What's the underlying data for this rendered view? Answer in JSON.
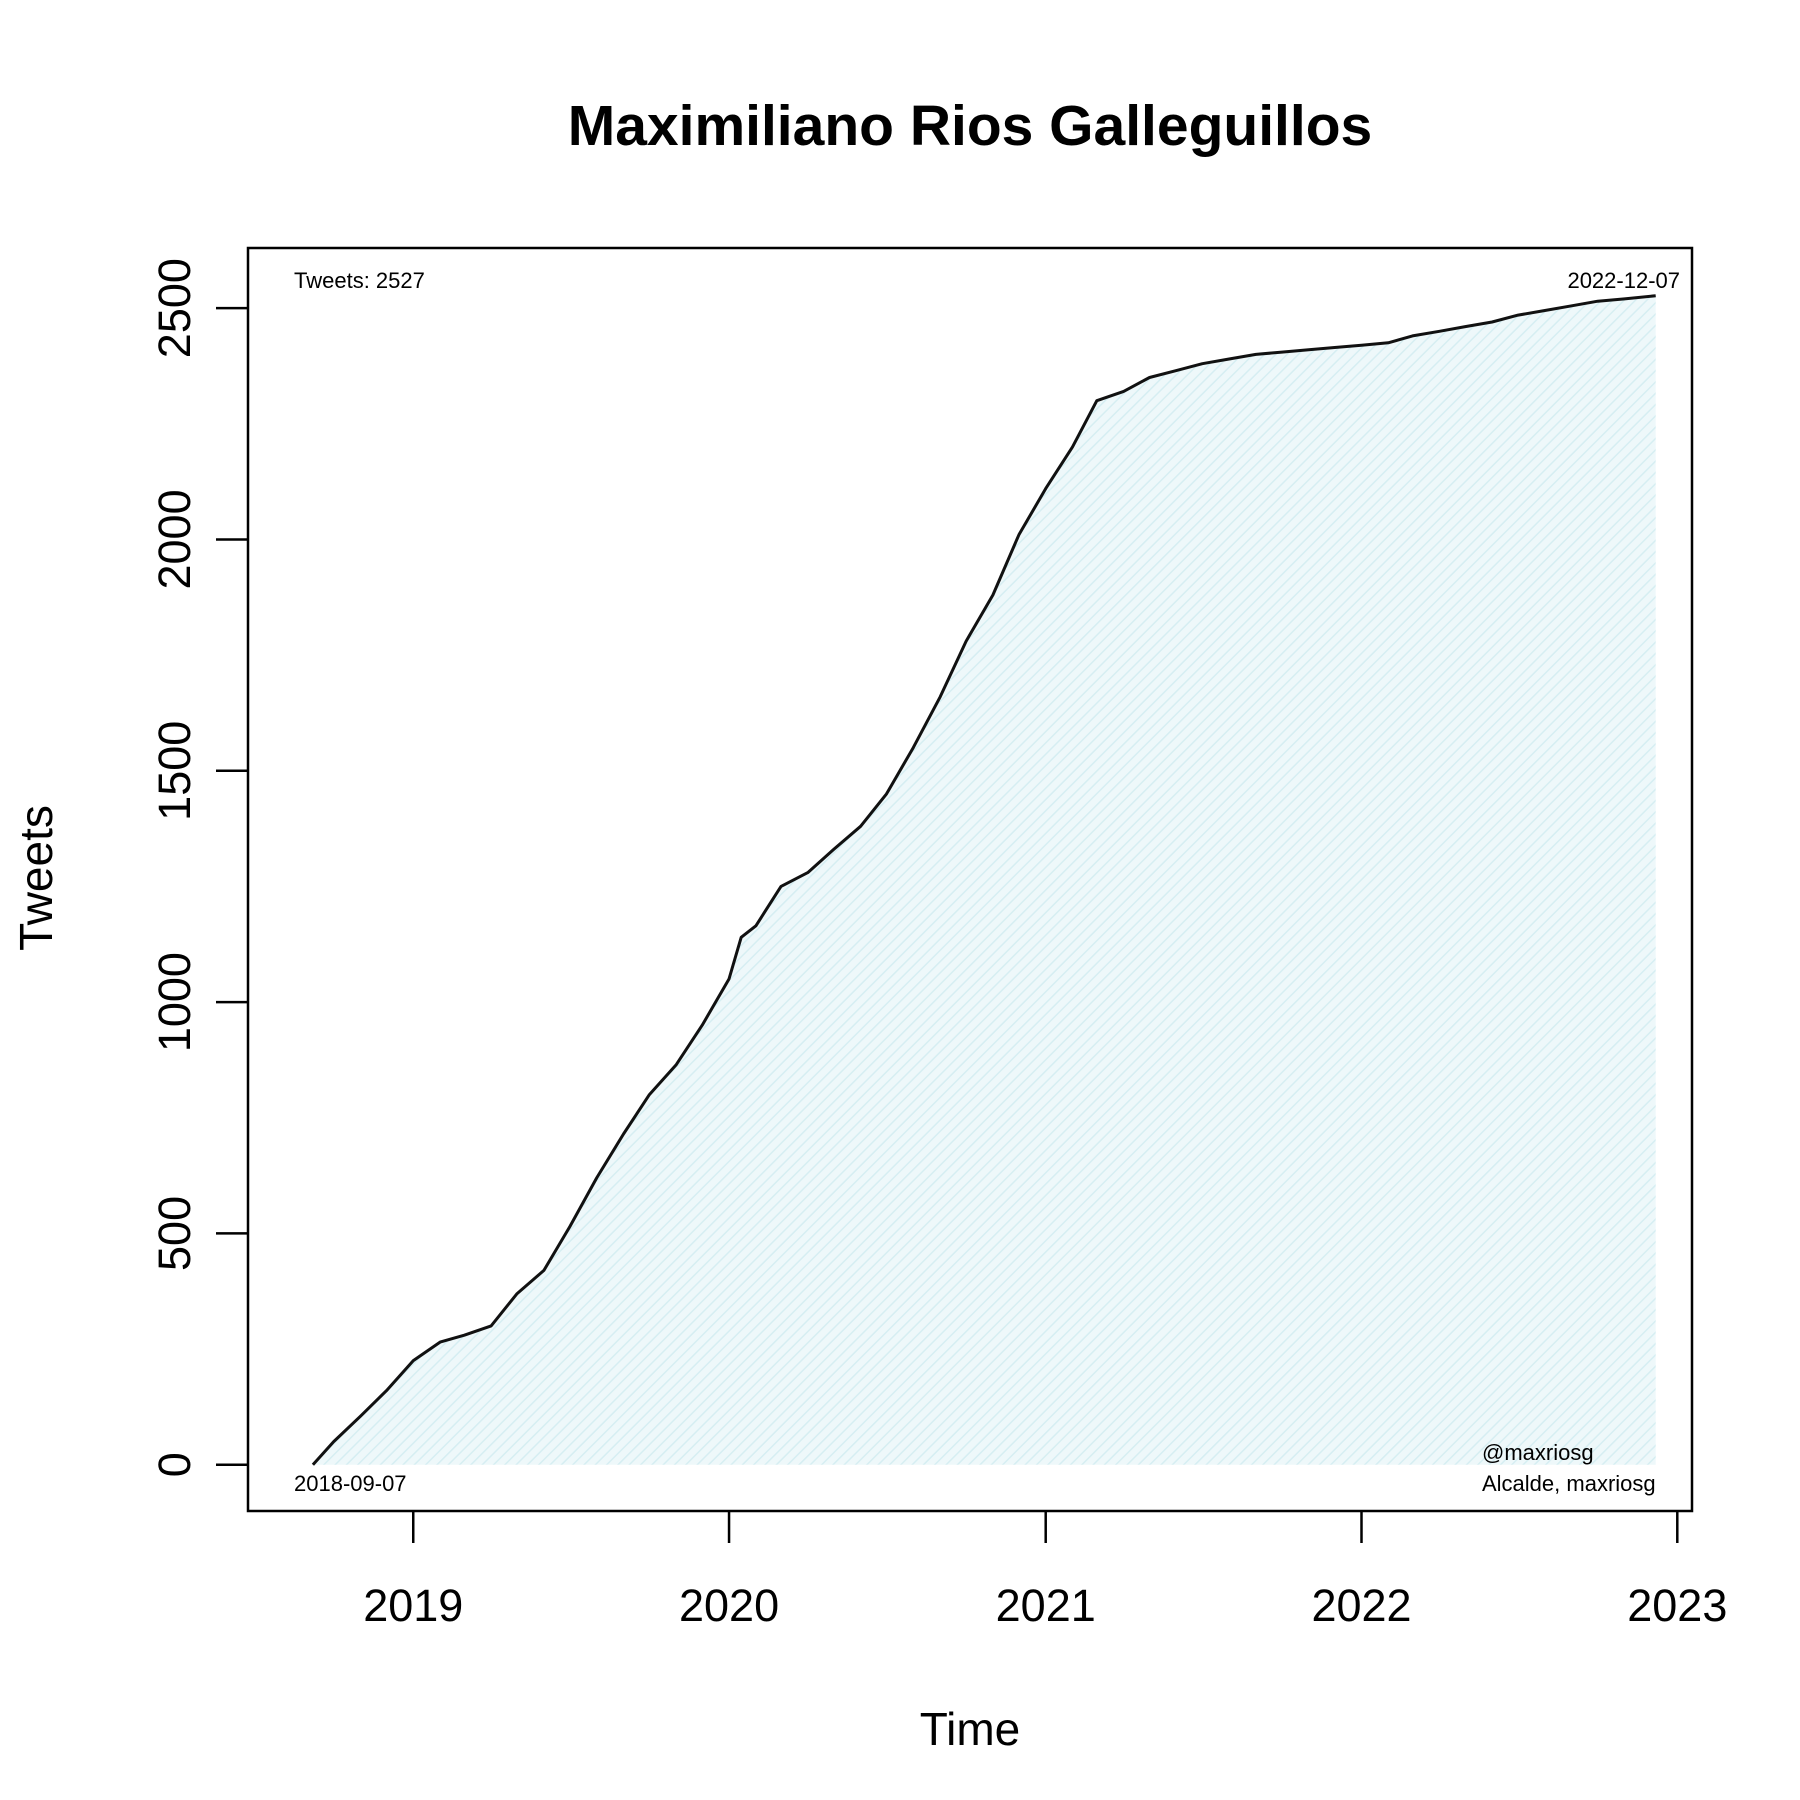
{
  "chart_data": {
    "type": "area",
    "title": "Maximiliano Rios Galleguillos",
    "xlabel": "Time",
    "ylabel": "Tweets",
    "xlim": [
      "2018-06-24",
      "2023-01-18"
    ],
    "ylim": [
      -100,
      2630
    ],
    "x_ticks": [
      "2019-01-01",
      "2020-01-01",
      "2021-01-01",
      "2022-01-01",
      "2023-01-01"
    ],
    "x_tick_labels": [
      "2019",
      "2020",
      "2021",
      "2022",
      "2023"
    ],
    "y_ticks": [
      0,
      500,
      1000,
      1500,
      2000,
      2500
    ],
    "y_tick_labels": [
      "0",
      "500",
      "1000",
      "1500",
      "2000",
      "2500"
    ],
    "grid": false,
    "fill_color": "#e0f4f7",
    "line_color": "#111111",
    "annotations": {
      "top_left": "Tweets: 2527",
      "top_right": "2022-12-07",
      "bottom_left": "2018-09-07",
      "bottom_right_line1": "@maxriosg",
      "bottom_right_line2": "Alcalde, maxriosg"
    },
    "series": [
      {
        "x": [
          "2018-09-07",
          "2018-10-01",
          "2018-11-01",
          "2018-12-01",
          "2019-01-01",
          "2019-02-01",
          "2019-03-01",
          "2019-04-01",
          "2019-05-01",
          "2019-06-01",
          "2019-07-01",
          "2019-08-01",
          "2019-09-01",
          "2019-10-01",
          "2019-11-01",
          "2019-12-01",
          "2020-01-01",
          "2020-01-15",
          "2020-02-01",
          "2020-03-01",
          "2020-04-01",
          "2020-05-01",
          "2020-06-01",
          "2020-07-01",
          "2020-08-01",
          "2020-09-01",
          "2020-10-01",
          "2020-11-01",
          "2020-12-01",
          "2021-01-01",
          "2021-02-01",
          "2021-03-01",
          "2021-04-01",
          "2021-05-01",
          "2021-06-01",
          "2021-07-01",
          "2021-08-01",
          "2021-09-01",
          "2021-10-01",
          "2021-11-01",
          "2021-12-01",
          "2022-01-01",
          "2022-02-01",
          "2022-03-01",
          "2022-04-01",
          "2022-05-01",
          "2022-06-01",
          "2022-07-01",
          "2022-08-01",
          "2022-09-01",
          "2022-10-01",
          "2022-11-01",
          "2022-12-07"
        ],
        "y": [
          0,
          50,
          105,
          160,
          225,
          265,
          280,
          300,
          370,
          420,
          515,
          620,
          715,
          800,
          865,
          950,
          1050,
          1140,
          1165,
          1250,
          1280,
          1330,
          1380,
          1450,
          1550,
          1660,
          1780,
          1880,
          2010,
          2110,
          2200,
          2300,
          2320,
          2350,
          2365,
          2380,
          2390,
          2400,
          2405,
          2410,
          2415,
          2420,
          2425,
          2440,
          2450,
          2460,
          2470,
          2485,
          2495,
          2505,
          2515,
          2520,
          2527
        ]
      }
    ]
  }
}
